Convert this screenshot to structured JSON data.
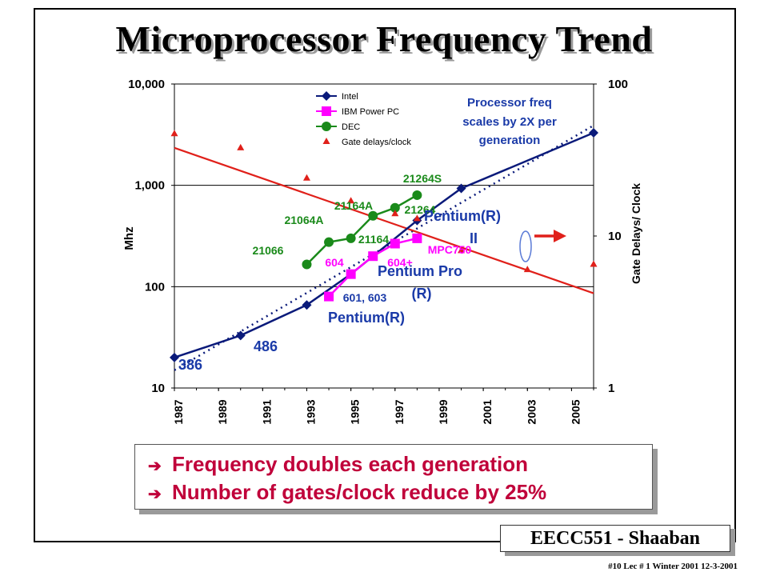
{
  "slide": {
    "title": "Microprocessor  Frequency Trend",
    "bullets": [
      {
        "icon": "right-arrow-bullet-icon",
        "symbol": "➔",
        "text": "Frequency doubles each generation"
      },
      {
        "icon": "right-arrow-bullet-icon",
        "symbol": "➔",
        "text": "Number of gates/clock reduce by 25%"
      }
    ],
    "badge": "EECC551  - Shaaban",
    "footer": "#10   Lec # 1 Winter 2001   12-3-2001"
  },
  "chart_data": {
    "type": "line",
    "xlabel": "",
    "ylabel": "Mhz",
    "y2label": "Gate Delays/ Clock",
    "xlim": [
      1987,
      2006
    ],
    "xticks": [
      "1987",
      "1989",
      "1991",
      "1993",
      "1995",
      "1997",
      "1999",
      "2001",
      "2003",
      "2005"
    ],
    "ylim": [
      10,
      10000
    ],
    "yscale": "log",
    "yticks": [
      "10",
      "100",
      "1,000",
      "10,000"
    ],
    "y2lim": [
      1,
      100
    ],
    "y2scale": "log",
    "y2ticks": [
      "1",
      "10",
      "100"
    ],
    "grid": "horizontal",
    "legend_position": "top-left",
    "legend": [
      "Intel",
      "IBM Power PC",
      "DEC",
      "Gate delays/clock"
    ],
    "series": [
      {
        "name": "Intel",
        "marker": "diamond",
        "color": "#0a1a7a",
        "points": [
          [
            1987,
            20
          ],
          [
            1990,
            33
          ],
          [
            1993,
            66
          ],
          [
            1995,
            133
          ],
          [
            1998,
            450
          ],
          [
            2000,
            933
          ],
          [
            2006,
            3300
          ]
        ]
      },
      {
        "name": "IBM Power PC",
        "marker": "square",
        "color": "#ff00ff",
        "points": [
          [
            1994,
            80
          ],
          [
            1995,
            133
          ],
          [
            1996,
            200
          ],
          [
            1997,
            266
          ],
          [
            1998,
            300
          ]
        ]
      },
      {
        "name": "DEC",
        "marker": "circle",
        "color": "#1a8a1a",
        "points": [
          [
            1993,
            166
          ],
          [
            1994,
            275
          ],
          [
            1995,
            300
          ],
          [
            1996,
            500
          ],
          [
            1997,
            600
          ],
          [
            1998,
            800
          ]
        ]
      },
      {
        "name": "Gate delays/clock",
        "marker": "triangle",
        "color": "#e0201a",
        "axis": "right",
        "points": [
          [
            1987,
            47
          ],
          [
            1990,
            38
          ],
          [
            1993,
            24
          ],
          [
            1995,
            17
          ],
          [
            1997,
            14
          ],
          [
            1998,
            13
          ],
          [
            2000,
            8
          ],
          [
            2003,
            6
          ],
          [
            2006,
            6.5
          ]
        ]
      }
    ],
    "annotations": [
      {
        "text": "Processor freq",
        "color": "#1a3aa8"
      },
      {
        "text": "scales by 2X per",
        "color": "#1a3aa8"
      },
      {
        "text": "generation",
        "color": "#1a3aa8"
      },
      {
        "text": "21264S",
        "color": "#1a8a1a"
      },
      {
        "text": "21164A",
        "color": "#1a8a1a"
      },
      {
        "text": "21064A",
        "color": "#1a8a1a"
      },
      {
        "text": "21066",
        "color": "#1a8a1a"
      },
      {
        "text": "21164",
        "color": "#1a8a1a"
      },
      {
        "text": "21264",
        "color": "#1a8a1a"
      },
      {
        "text": "604",
        "color": "#ff00ff"
      },
      {
        "text": "604+",
        "color": "#ff00ff"
      },
      {
        "text": "MPC750",
        "color": "#ff00ff"
      },
      {
        "text": "601, 603",
        "color": "#1a3aa8"
      },
      {
        "text": "Pentium(R)",
        "color": "#1a3aa8"
      },
      {
        "text": "II",
        "color": "#1a3aa8"
      },
      {
        "text": "Pentium Pro",
        "color": "#1a3aa8"
      },
      {
        "text": "(R)",
        "color": "#1a3aa8"
      },
      {
        "text": "Pentium(R)",
        "color": "#1a3aa8"
      },
      {
        "text": "486",
        "color": "#1a3aa8"
      },
      {
        "text": "386",
        "color": "#1a3aa8"
      }
    ]
  }
}
